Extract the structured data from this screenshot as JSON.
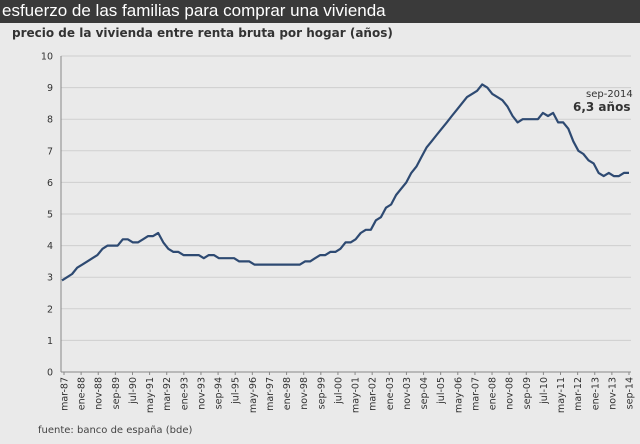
{
  "chart_data": {
    "type": "line",
    "title": "esfuerzo de las familias para comprar una vivienda",
    "subtitle": "precio de la vivienda entre renta bruta por hogar (años)",
    "source": "fuente: banco de españa (bde)",
    "ylim": [
      0,
      10
    ],
    "y_ticks": [
      "0",
      "1",
      "2",
      "3",
      "4",
      "5",
      "6",
      "7",
      "8",
      "9",
      "10"
    ],
    "x_tick_labels": [
      "mar-87",
      "ene-88",
      "nov-88",
      "sep-89",
      "jul-90",
      "may-91",
      "mar-92",
      "ene-93",
      "nov-93",
      "sep-94",
      "jul-95",
      "may-96",
      "mar-97",
      "ene-98",
      "nov-98",
      "sep-99",
      "jul-00",
      "may-01",
      "mar-02",
      "ene-03",
      "nov-03",
      "sep-04",
      "jul-05",
      "may-06",
      "mar-07",
      "ene-08",
      "nov-08",
      "sep-09",
      "jul-10",
      "may-11",
      "mar-12",
      "ene-13",
      "nov-13",
      "sep-14"
    ],
    "grid": true,
    "legend": "none",
    "line_color": "#2e4a72",
    "annotation": {
      "period": "sep-2014",
      "value_label": "6,3 años"
    },
    "series": [
      {
        "values": [
          2.9,
          3.0,
          3.1,
          3.3,
          3.4,
          3.5,
          3.6,
          3.7,
          3.9,
          4.0,
          4.0,
          4.0,
          4.2,
          4.2,
          4.1,
          4.1,
          4.2,
          4.3,
          4.3,
          4.4,
          4.1,
          3.9,
          3.8,
          3.8,
          3.7,
          3.7,
          3.7,
          3.7,
          3.6,
          3.7,
          3.7,
          3.6,
          3.6,
          3.6,
          3.6,
          3.5,
          3.5,
          3.5,
          3.4,
          3.4,
          3.4,
          3.4,
          3.4,
          3.4,
          3.4,
          3.4,
          3.4,
          3.4,
          3.5,
          3.5,
          3.6,
          3.7,
          3.7,
          3.8,
          3.8,
          3.9,
          4.1,
          4.1,
          4.2,
          4.4,
          4.5,
          4.5,
          4.8,
          4.9,
          5.2,
          5.3,
          5.6,
          5.8,
          6.0,
          6.3,
          6.5,
          6.8,
          7.1,
          7.3,
          7.5,
          7.7,
          7.9,
          8.1,
          8.3,
          8.5,
          8.7,
          8.8,
          8.9,
          9.1,
          9.0,
          8.8,
          8.7,
          8.6,
          8.4,
          8.1,
          7.9,
          8.0,
          8.0,
          8.0,
          8.0,
          8.2,
          8.1,
          8.2,
          7.9,
          7.9,
          7.7,
          7.3,
          7.0,
          6.9,
          6.7,
          6.6,
          6.3,
          6.2,
          6.3,
          6.2,
          6.2,
          6.3,
          6.3
        ]
      }
    ]
  }
}
